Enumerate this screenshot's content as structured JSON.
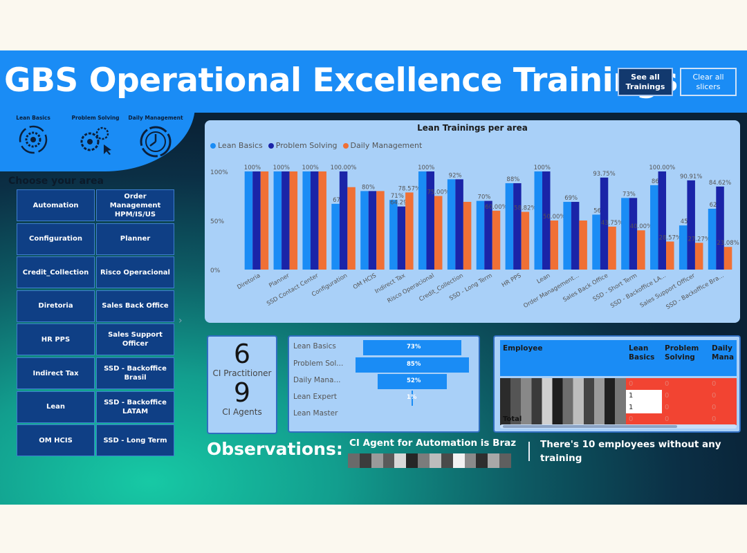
{
  "header": {
    "title": "GBS Operational Excellence Trainings",
    "see_all_label": "See all Trainings",
    "clear_label": "Clear all slicers"
  },
  "training_icons": [
    {
      "label": "Lean Basics",
      "icon": "gear-cycle-icon"
    },
    {
      "label": "Problem Solving",
      "icon": "gears-click-icon"
    },
    {
      "label": "Daily Management",
      "icon": "clock-gear-icon"
    }
  ],
  "areas": {
    "heading": "Choose your area",
    "left": [
      "Automation",
      "Configuration",
      "Credit_Collection",
      "Diretoria",
      "HR PPS",
      "Indirect Tax",
      "Lean",
      "OM HCIS"
    ],
    "right": [
      "Order Management HPM/IS/US",
      "Planner",
      "Risco Operacional",
      "Sales Back Office",
      "Sales Support Officer",
      "SSD - Backoffice Brasil",
      "SSD - Backoffice LATAM",
      "SSD - Long Term"
    ]
  },
  "chart_data": {
    "type": "bar",
    "title": "Lean Trainings per area",
    "ylabel": "",
    "xlabel": "",
    "ylim": [
      0,
      100
    ],
    "yticks": [
      "0%",
      "50%",
      "100%"
    ],
    "legend_position": "top-left",
    "categories": [
      "Diretoria",
      "Planner",
      "SSD Contact Center",
      "Configuration",
      "OM HCIS",
      "Indirect Tax",
      "Risco Operacional",
      "Credit_Collection",
      "SSD - Long Term",
      "HR PPS",
      "Lean",
      "Order Management...",
      "Sales Back Office",
      "SSD - Short Term",
      "SSD - Backoffice LA...",
      "Sales Support Officer",
      "SSD - Backoffice Bra..."
    ],
    "series": [
      {
        "name": "Lean Basics",
        "color": "#1a8cf5",
        "values": [
          100,
          100,
          100,
          67,
          80,
          71,
          100,
          92,
          70,
          88,
          100,
          69,
          56,
          73,
          86,
          45,
          62
        ],
        "labels": [
          "100%",
          "100%",
          "100%",
          "67%",
          "80%",
          "71%",
          "100%",
          "92%",
          "70%",
          "88%",
          "100%",
          "69%",
          "56%",
          "73%",
          "86%",
          "45%",
          "62%"
        ]
      },
      {
        "name": "Problem Solving",
        "color": "#1a24a8",
        "values": [
          100,
          100,
          100,
          100,
          80,
          64.29,
          100,
          92,
          70,
          88,
          100,
          69,
          93.75,
          73,
          100,
          90.91,
          84.62
        ],
        "labels": [
          "",
          "",
          "",
          "100.00%",
          "",
          "64.29%",
          "",
          "",
          "",
          "",
          "",
          "",
          "93.75%",
          "",
          "100.00%",
          "90.91%",
          "84.62%"
        ]
      },
      {
        "name": "Daily Management",
        "color": "#f07035",
        "values": [
          100,
          100,
          100,
          84,
          80,
          78.57,
          75,
          69,
          60,
          58.82,
          50,
          50,
          43.75,
          40,
          28.57,
          27.27,
          23.08
        ],
        "labels": [
          "",
          "",
          "",
          "",
          "",
          "78.57%",
          "75.00%",
          "",
          "60.00%",
          "58.82%",
          "50.00%",
          "",
          "43.75%",
          "40.00%",
          "28.57%",
          "27.27%",
          "23.08%"
        ]
      }
    ]
  },
  "counts": {
    "practitioner_value": "6",
    "practitioner_label": "CI Practitioner",
    "agents_value": "9",
    "agents_label": "CI Agents"
  },
  "training_progress": [
    {
      "label": "Lean Basics",
      "value": 73,
      "text": "73%"
    },
    {
      "label": "Problem Sol...",
      "value": 85,
      "text": "85%"
    },
    {
      "label": "Daily Mana...",
      "value": 52,
      "text": "52%"
    },
    {
      "label": "Lean Expert",
      "value": 1,
      "text": "1%"
    },
    {
      "label": "Lean Master",
      "value": 0,
      "text": ""
    }
  ],
  "employee_table": {
    "headers": [
      "Employee",
      "Lean Basics",
      "Problem Solving",
      "Daily Mana"
    ],
    "rows": [
      [
        "0",
        "0",
        "0"
      ],
      [
        "1",
        "0",
        "0"
      ],
      [
        "1",
        "0",
        "0"
      ],
      [
        "0",
        "0",
        "0"
      ]
    ],
    "total_label": "Total"
  },
  "observations": {
    "label": "Observations:",
    "note1": "CI Agent for Automation is Braz",
    "note2": "There's 10 employees without any training"
  },
  "colors": {
    "header_blue": "#1a8cf5",
    "dark_navy": "#0f3f85",
    "lean_basics": "#1a8cf5",
    "problem_solving": "#1a24a8",
    "daily_management": "#f07035",
    "table_red": "#f24432"
  }
}
